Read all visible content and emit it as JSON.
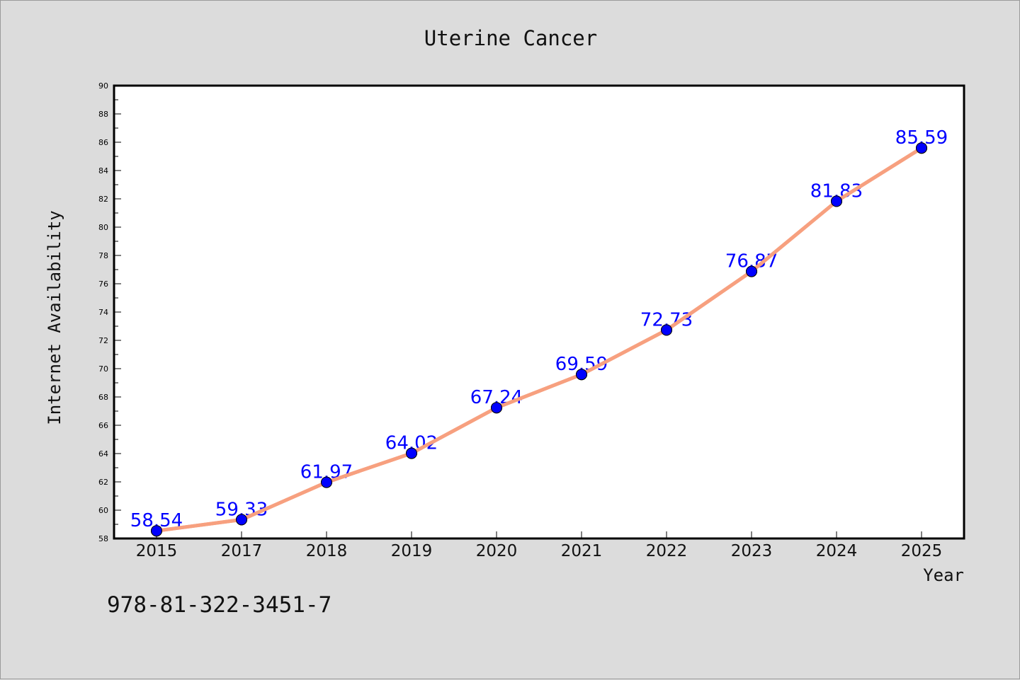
{
  "chart_data": {
    "type": "line",
    "title": "Uterine Cancer",
    "xlabel": "Year",
    "ylabel": "Internet Availability",
    "categories": [
      "2015",
      "2017",
      "2018",
      "2019",
      "2020",
      "2021",
      "2022",
      "2023",
      "2024",
      "2025"
    ],
    "series": [
      {
        "values": [
          58.54,
          59.33,
          61.97,
          64.02,
          67.24,
          69.59,
          72.73,
          76.87,
          81.83,
          85.59
        ],
        "line_color": "#f7a07f",
        "marker_color": "#0000ff"
      }
    ],
    "data_labels": [
      "58.54",
      "59.33",
      "61.97",
      "64.02",
      "67.24",
      "69.59",
      "72.73",
      "76.87",
      "81.83",
      "85.59"
    ],
    "ylim": [
      58,
      90
    ],
    "yticks": [
      58,
      60,
      62,
      64,
      66,
      68,
      70,
      72,
      74,
      76,
      78,
      80,
      82,
      84,
      86,
      88,
      90
    ],
    "grid": false,
    "legend": "none",
    "background": "#dcdcdc",
    "plot_background": "#ffffff"
  },
  "footer_text": "978-81-322-3451-7"
}
